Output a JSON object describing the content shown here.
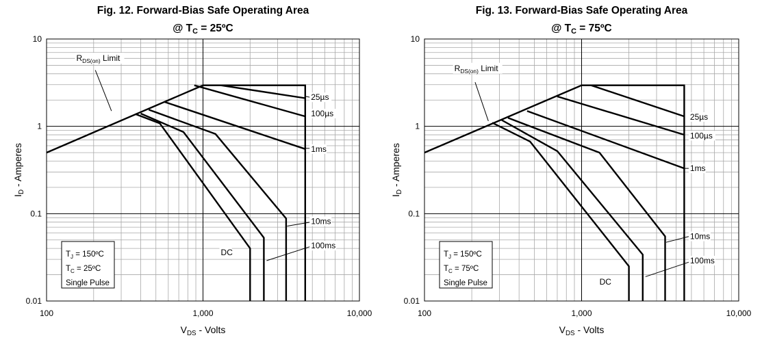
{
  "chart_data": [
    {
      "type": "line",
      "title": "Fig. 12. Forward-Bias Safe Operating Area",
      "subtitle": {
        "prefix": "@ T",
        "sub": "C",
        "suffix": " = 25ºC"
      },
      "xlabel": {
        "main": "V",
        "sub": "DS",
        "rest": " - Volts"
      },
      "ylabel": {
        "main": "I",
        "sub": "D",
        "rest": " - Amperes"
      },
      "x_scale": "log",
      "y_scale": "log",
      "xlim": [
        100,
        10000
      ],
      "ylim": [
        0.01,
        10
      ],
      "x_ticks": [
        {
          "v": 100,
          "label": "100"
        },
        {
          "v": 1000,
          "label": "1,000"
        },
        {
          "v": 10000,
          "label": "10,000"
        }
      ],
      "y_ticks": [
        {
          "v": 10,
          "label": "10"
        },
        {
          "v": 1,
          "label": "1"
        },
        {
          "v": 0.1,
          "label": "0.1"
        },
        {
          "v": 0.01,
          "label": "0.01"
        }
      ],
      "grid": true,
      "note_lines": [
        {
          "main": "T",
          "sub": "J",
          "rest": " = 150ºC"
        },
        {
          "main": "T",
          "sub": "C",
          "rest": " = 25ºC"
        },
        {
          "main": "Single Pulse",
          "sub": "",
          "rest": ""
        }
      ],
      "rds_label": {
        "main": "R",
        "sub": "DS(on)",
        "rest": " Limit"
      },
      "rds_limit": [
        [
          100,
          0.5
        ],
        [
          1000,
          2.95
        ]
      ],
      "power_limit": [
        [
          1000,
          2.95
        ],
        [
          4500,
          2.95
        ],
        [
          4500,
          0.01
        ]
      ],
      "series": [
        {
          "name": "25µs",
          "points": [
            [
              1300,
              2.95
            ],
            [
              4500,
              2.1
            ]
          ]
        },
        {
          "name": "100µs",
          "points": [
            [
              880,
              2.95
            ],
            [
              4500,
              1.3
            ]
          ]
        },
        {
          "name": "1ms",
          "points": [
            [
              570,
              1.9
            ],
            [
              4500,
              0.55
            ]
          ]
        },
        {
          "name": "10ms",
          "points": [
            [
              450,
              1.55
            ],
            [
              1200,
              0.82
            ],
            [
              3400,
              0.088
            ],
            [
              3400,
              0.01
            ]
          ]
        },
        {
          "name": "100ms",
          "points": [
            [
              400,
              1.4
            ],
            [
              750,
              0.86
            ],
            [
              2450,
              0.053
            ],
            [
              2450,
              0.01
            ]
          ]
        },
        {
          "name": "DC",
          "points": [
            [
              370,
              1.38
            ],
            [
              530,
              1.08
            ],
            [
              2000,
              0.04
            ],
            [
              2000,
              0.01
            ]
          ]
        }
      ],
      "labels": [
        {
          "text": "25µs",
          "at": [
            4900,
            2.15
          ],
          "line": [
            [
              4550,
              2.2
            ],
            [
              4850,
              2.15
            ]
          ]
        },
        {
          "text": "100µs",
          "at": [
            4900,
            1.4
          ],
          "line": null
        },
        {
          "text": "1ms",
          "at": [
            4900,
            0.55
          ],
          "line": [
            [
              4550,
              0.56
            ],
            [
              4850,
              0.56
            ]
          ]
        },
        {
          "text": "10ms",
          "at": [
            4900,
            0.082
          ],
          "line": [
            [
              3450,
              0.072
            ],
            [
              4850,
              0.08
            ]
          ]
        },
        {
          "text": "100ms",
          "at": [
            4900,
            0.043
          ],
          "line": [
            [
              2550,
              0.029
            ],
            [
              4850,
              0.042
            ]
          ]
        },
        {
          "text": "DC",
          "at": [
            1300,
            0.036
          ],
          "line": null
        }
      ],
      "rds_label_at": [
        155,
        5.6
      ],
      "rds_pointer": [
        [
          205,
          4.4
        ],
        [
          260,
          1.5
        ]
      ]
    },
    {
      "type": "line",
      "title": "Fig. 13. Forward-Bias Safe Operating Area",
      "subtitle": {
        "prefix": "@ T",
        "sub": "C",
        "suffix": " = 75ºC"
      },
      "xlabel": {
        "main": "V",
        "sub": "DS",
        "rest": " - Volts"
      },
      "ylabel": {
        "main": "I",
        "sub": "D",
        "rest": " - Amperes"
      },
      "x_scale": "log",
      "y_scale": "log",
      "xlim": [
        100,
        10000
      ],
      "ylim": [
        0.01,
        10
      ],
      "x_ticks": [
        {
          "v": 100,
          "label": "100"
        },
        {
          "v": 1000,
          "label": "1,000"
        },
        {
          "v": 10000,
          "label": "10,000"
        }
      ],
      "y_ticks": [
        {
          "v": 10,
          "label": "10"
        },
        {
          "v": 1,
          "label": "1"
        },
        {
          "v": 0.1,
          "label": "0.1"
        },
        {
          "v": 0.01,
          "label": "0.01"
        }
      ],
      "grid": true,
      "note_lines": [
        {
          "main": "T",
          "sub": "J",
          "rest": " = 150ºC"
        },
        {
          "main": "T",
          "sub": "C",
          "rest": " = 75ºC"
        },
        {
          "main": "Single Pulse",
          "sub": "",
          "rest": ""
        }
      ],
      "rds_label": {
        "main": "R",
        "sub": "DS(on)",
        "rest": " Limit"
      },
      "rds_limit": [
        [
          100,
          0.5
        ],
        [
          1000,
          2.95
        ]
      ],
      "power_limit": [
        [
          1000,
          2.95
        ],
        [
          4500,
          2.95
        ],
        [
          4500,
          0.01
        ]
      ],
      "series": [
        {
          "name": "25µs",
          "points": [
            [
              1150,
              2.95
            ],
            [
              4500,
              1.3
            ]
          ]
        },
        {
          "name": "100µs",
          "points": [
            [
              700,
              2.2
            ],
            [
              4500,
              0.8
            ]
          ]
        },
        {
          "name": "1ms",
          "points": [
            [
              450,
              1.5
            ],
            [
              4500,
              0.33
            ]
          ]
        },
        {
          "name": "10ms",
          "points": [
            [
              340,
              1.25
            ],
            [
              1300,
              0.5
            ],
            [
              3400,
              0.055
            ],
            [
              3400,
              0.01
            ]
          ]
        },
        {
          "name": "100ms",
          "points": [
            [
              310,
              1.18
            ],
            [
              700,
              0.52
            ],
            [
              2450,
              0.034
            ],
            [
              2450,
              0.01
            ]
          ]
        },
        {
          "name": "DC",
          "points": [
            [
              270,
              1.1
            ],
            [
              470,
              0.67
            ],
            [
              2000,
              0.025
            ],
            [
              2000,
              0.01
            ]
          ]
        }
      ],
      "labels": [
        {
          "text": "25µs",
          "at": [
            4900,
            1.28
          ],
          "line": null
        },
        {
          "text": "100µs",
          "at": [
            4900,
            0.78
          ],
          "line": null
        },
        {
          "text": "1ms",
          "at": [
            4900,
            0.33
          ],
          "line": [
            [
              4550,
              0.33
            ],
            [
              4850,
              0.33
            ]
          ]
        },
        {
          "text": "10ms",
          "at": [
            4900,
            0.055
          ],
          "line": [
            [
              3450,
              0.047
            ],
            [
              4850,
              0.055
            ]
          ]
        },
        {
          "text": "100ms",
          "at": [
            4900,
            0.029
          ],
          "line": [
            [
              2550,
              0.019
            ],
            [
              4850,
              0.028
            ]
          ]
        },
        {
          "text": "DC",
          "at": [
            1300,
            0.0165
          ],
          "line": null
        }
      ],
      "rds_label_at": [
        155,
        4.3
      ],
      "rds_pointer": [
        [
          210,
          3.2
        ],
        [
          255,
          1.15
        ]
      ]
    }
  ]
}
